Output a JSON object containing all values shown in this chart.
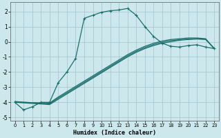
{
  "title": "",
  "xlabel": "Humidex (Indice chaleur)",
  "background_color": "#cce8ed",
  "grid_color": "#aac8d0",
  "line_color": "#1a6e6a",
  "xlim": [
    -0.5,
    23.5
  ],
  "ylim": [
    -5.2,
    2.6
  ],
  "xticks": [
    0,
    1,
    2,
    3,
    4,
    5,
    6,
    7,
    8,
    9,
    10,
    11,
    12,
    13,
    14,
    15,
    16,
    17,
    18,
    19,
    20,
    21,
    22,
    23
  ],
  "yticks": [
    -5,
    -4,
    -3,
    -2,
    -1,
    0,
    1,
    2
  ],
  "curve1_x": [
    0,
    1,
    2,
    3,
    4,
    5,
    6,
    7,
    8,
    9,
    10,
    11,
    12,
    13,
    14,
    15,
    16,
    17,
    18,
    19,
    20,
    21,
    22,
    23
  ],
  "curve1_y": [
    -4.0,
    -4.5,
    -4.3,
    -4.0,
    -4.0,
    -2.7,
    -2.0,
    -1.1,
    1.55,
    1.75,
    1.95,
    2.05,
    2.1,
    2.2,
    1.75,
    1.0,
    0.35,
    -0.1,
    -0.3,
    -0.35,
    -0.25,
    -0.2,
    -0.35,
    -0.45
  ],
  "curve2_x": [
    0,
    4,
    5,
    6,
    7,
    8,
    9,
    10,
    11,
    12,
    13,
    14,
    15,
    16,
    17,
    18,
    19,
    20,
    21,
    22,
    23
  ],
  "curve2_y": [
    -4.0,
    -4.05,
    -3.65,
    -3.3,
    -2.95,
    -2.6,
    -2.25,
    -1.9,
    -1.55,
    -1.2,
    -0.85,
    -0.55,
    -0.3,
    -0.1,
    0.05,
    0.15,
    0.2,
    0.25,
    0.25,
    0.2,
    -0.45
  ],
  "curve3_x": [
    0,
    4,
    5,
    6,
    7,
    8,
    9,
    10,
    11,
    12,
    13,
    14,
    15,
    16,
    17,
    18,
    19,
    20,
    21,
    22,
    23
  ],
  "curve3_y": [
    -4.0,
    -4.15,
    -3.8,
    -3.45,
    -3.1,
    -2.75,
    -2.4,
    -2.05,
    -1.7,
    -1.35,
    -1.0,
    -0.7,
    -0.45,
    -0.25,
    -0.1,
    0.0,
    0.1,
    0.15,
    0.18,
    0.15,
    -0.45
  ],
  "curve4_x": [
    0,
    4,
    5,
    6,
    7,
    8,
    9,
    10,
    11,
    12,
    13,
    14,
    15,
    16,
    17,
    18,
    19,
    20,
    21,
    22,
    23
  ],
  "curve4_y": [
    -3.95,
    -4.1,
    -3.72,
    -3.38,
    -3.03,
    -2.68,
    -2.33,
    -1.98,
    -1.63,
    -1.28,
    -0.93,
    -0.63,
    -0.38,
    -0.18,
    -0.03,
    0.08,
    0.13,
    0.18,
    0.2,
    0.17,
    -0.45
  ]
}
